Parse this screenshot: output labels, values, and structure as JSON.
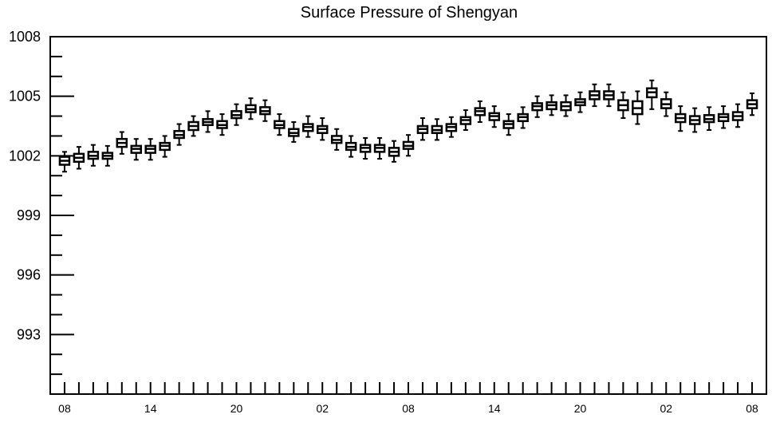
{
  "chart_data": {
    "type": "boxplot",
    "title": "Surface Pressure of Shengyan",
    "xlabel": "",
    "ylabel": "",
    "ylim": [
      990,
      1008
    ],
    "yticks": [
      1008,
      1005,
      1002,
      999,
      996,
      993
    ],
    "ytick_labels": [
      "1008",
      "1005",
      "1002",
      "999",
      "996",
      "993"
    ],
    "xtick_labels": [
      "08",
      "14",
      "20",
      "02",
      "08",
      "14",
      "20",
      "02",
      "08"
    ],
    "xtick_positions": [
      0,
      6,
      12,
      18,
      24,
      30,
      36,
      42,
      48
    ],
    "x_range": [
      -1,
      49
    ],
    "grid": false,
    "legend": "none",
    "colors": {
      "box_fill": "#ffffff",
      "box_stroke": "#000000",
      "axis": "#000000"
    },
    "boxes": [
      {
        "x": 0,
        "min": 1001.2,
        "q1": 1001.55,
        "median": 1001.75,
        "q3": 1001.95,
        "max": 1002.2
      },
      {
        "x": 1,
        "min": 1001.35,
        "q1": 1001.7,
        "median": 1001.9,
        "q3": 1002.1,
        "max": 1002.45
      },
      {
        "x": 2,
        "min": 1001.5,
        "q1": 1001.85,
        "median": 1002.0,
        "q3": 1002.2,
        "max": 1002.55
      },
      {
        "x": 3,
        "min": 1001.5,
        "q1": 1001.85,
        "median": 1002.0,
        "q3": 1002.15,
        "max": 1002.5
      },
      {
        "x": 4,
        "min": 1002.1,
        "q1": 1002.45,
        "median": 1002.65,
        "q3": 1002.85,
        "max": 1003.2
      },
      {
        "x": 5,
        "min": 1001.8,
        "q1": 1002.15,
        "median": 1002.35,
        "q3": 1002.5,
        "max": 1002.85
      },
      {
        "x": 6,
        "min": 1001.8,
        "q1": 1002.15,
        "median": 1002.35,
        "q3": 1002.5,
        "max": 1002.85
      },
      {
        "x": 7,
        "min": 1001.95,
        "q1": 1002.3,
        "median": 1002.5,
        "q3": 1002.65,
        "max": 1003.0
      },
      {
        "x": 8,
        "min": 1002.55,
        "q1": 1002.9,
        "median": 1003.05,
        "q3": 1003.25,
        "max": 1003.6
      },
      {
        "x": 9,
        "min": 1003.0,
        "q1": 1003.3,
        "median": 1003.5,
        "q3": 1003.7,
        "max": 1004.0
      },
      {
        "x": 10,
        "min": 1003.2,
        "q1": 1003.55,
        "median": 1003.7,
        "q3": 1003.85,
        "max": 1004.25
      },
      {
        "x": 11,
        "min": 1003.05,
        "q1": 1003.4,
        "median": 1003.55,
        "q3": 1003.75,
        "max": 1004.1
      },
      {
        "x": 12,
        "min": 1003.55,
        "q1": 1003.9,
        "median": 1004.05,
        "q3": 1004.25,
        "max": 1004.6
      },
      {
        "x": 13,
        "min": 1003.85,
        "q1": 1004.2,
        "median": 1004.35,
        "q3": 1004.55,
        "max": 1004.9
      },
      {
        "x": 14,
        "min": 1003.75,
        "q1": 1004.1,
        "median": 1004.25,
        "q3": 1004.45,
        "max": 1004.8
      },
      {
        "x": 15,
        "min": 1003.05,
        "q1": 1003.4,
        "median": 1003.55,
        "q3": 1003.75,
        "max": 1004.1
      },
      {
        "x": 16,
        "min": 1002.7,
        "q1": 1003.0,
        "median": 1003.15,
        "q3": 1003.35,
        "max": 1003.7
      },
      {
        "x": 17,
        "min": 1002.95,
        "q1": 1003.25,
        "median": 1003.45,
        "q3": 1003.6,
        "max": 1004.0
      },
      {
        "x": 18,
        "min": 1002.8,
        "q1": 1003.15,
        "median": 1003.35,
        "q3": 1003.5,
        "max": 1003.9
      },
      {
        "x": 19,
        "min": 1002.3,
        "q1": 1002.65,
        "median": 1002.8,
        "q3": 1003.0,
        "max": 1003.35
      },
      {
        "x": 20,
        "min": 1001.95,
        "q1": 1002.3,
        "median": 1002.45,
        "q3": 1002.65,
        "max": 1003.0
      },
      {
        "x": 21,
        "min": 1001.85,
        "q1": 1002.2,
        "median": 1002.4,
        "q3": 1002.55,
        "max": 1002.9
      },
      {
        "x": 22,
        "min": 1001.85,
        "q1": 1002.2,
        "median": 1002.4,
        "q3": 1002.55,
        "max": 1002.9
      },
      {
        "x": 23,
        "min": 1001.7,
        "q1": 1002.0,
        "median": 1002.2,
        "q3": 1002.4,
        "max": 1002.75
      },
      {
        "x": 24,
        "min": 1002.0,
        "q1": 1002.35,
        "median": 1002.5,
        "q3": 1002.7,
        "max": 1003.05
      },
      {
        "x": 25,
        "min": 1002.8,
        "q1": 1003.15,
        "median": 1003.35,
        "q3": 1003.5,
        "max": 1003.9
      },
      {
        "x": 26,
        "min": 1002.8,
        "q1": 1003.15,
        "median": 1003.3,
        "q3": 1003.5,
        "max": 1003.85
      },
      {
        "x": 27,
        "min": 1002.95,
        "q1": 1003.25,
        "median": 1003.45,
        "q3": 1003.6,
        "max": 1003.95
      },
      {
        "x": 28,
        "min": 1003.3,
        "q1": 1003.6,
        "median": 1003.8,
        "q3": 1003.95,
        "max": 1004.3
      },
      {
        "x": 29,
        "min": 1003.7,
        "q1": 1004.05,
        "median": 1004.25,
        "q3": 1004.4,
        "max": 1004.75
      },
      {
        "x": 30,
        "min": 1003.45,
        "q1": 1003.8,
        "median": 1004.0,
        "q3": 1004.15,
        "max": 1004.5
      },
      {
        "x": 31,
        "min": 1003.05,
        "q1": 1003.4,
        "median": 1003.6,
        "q3": 1003.75,
        "max": 1004.1
      },
      {
        "x": 32,
        "min": 1003.4,
        "q1": 1003.75,
        "median": 1003.95,
        "q3": 1004.1,
        "max": 1004.45
      },
      {
        "x": 33,
        "min": 1003.95,
        "q1": 1004.3,
        "median": 1004.5,
        "q3": 1004.65,
        "max": 1005.0
      },
      {
        "x": 34,
        "min": 1004.05,
        "q1": 1004.35,
        "median": 1004.55,
        "q3": 1004.7,
        "max": 1005.05
      },
      {
        "x": 35,
        "min": 1004.0,
        "q1": 1004.3,
        "median": 1004.5,
        "q3": 1004.7,
        "max": 1005.05
      },
      {
        "x": 36,
        "min": 1004.2,
        "q1": 1004.55,
        "median": 1004.7,
        "q3": 1004.85,
        "max": 1005.2
      },
      {
        "x": 37,
        "min": 1004.5,
        "q1": 1004.85,
        "median": 1005.05,
        "q3": 1005.25,
        "max": 1005.6
      },
      {
        "x": 38,
        "min": 1004.5,
        "q1": 1004.85,
        "median": 1005.05,
        "q3": 1005.25,
        "max": 1005.6
      },
      {
        "x": 39,
        "min": 1003.9,
        "q1": 1004.3,
        "median": 1004.55,
        "q3": 1004.8,
        "max": 1005.2
      },
      {
        "x": 40,
        "min": 1003.6,
        "q1": 1004.1,
        "median": 1004.4,
        "q3": 1004.75,
        "max": 1005.25
      },
      {
        "x": 41,
        "min": 1004.35,
        "q1": 1004.95,
        "median": 1005.2,
        "q3": 1005.4,
        "max": 1005.8
      },
      {
        "x": 42,
        "min": 1004.0,
        "q1": 1004.4,
        "median": 1004.6,
        "q3": 1004.85,
        "max": 1005.2
      },
      {
        "x": 43,
        "min": 1003.25,
        "q1": 1003.7,
        "median": 1003.9,
        "q3": 1004.1,
        "max": 1004.5
      },
      {
        "x": 44,
        "min": 1003.2,
        "q1": 1003.6,
        "median": 1003.8,
        "q3": 1004.0,
        "max": 1004.4
      },
      {
        "x": 45,
        "min": 1003.3,
        "q1": 1003.7,
        "median": 1003.85,
        "q3": 1004.05,
        "max": 1004.45
      },
      {
        "x": 46,
        "min": 1003.4,
        "q1": 1003.75,
        "median": 1003.95,
        "q3": 1004.1,
        "max": 1004.5
      },
      {
        "x": 47,
        "min": 1003.45,
        "q1": 1003.8,
        "median": 1004.0,
        "q3": 1004.2,
        "max": 1004.6
      },
      {
        "x": 48,
        "min": 1004.05,
        "q1": 1004.4,
        "median": 1004.6,
        "q3": 1004.8,
        "max": 1005.15
      }
    ]
  }
}
